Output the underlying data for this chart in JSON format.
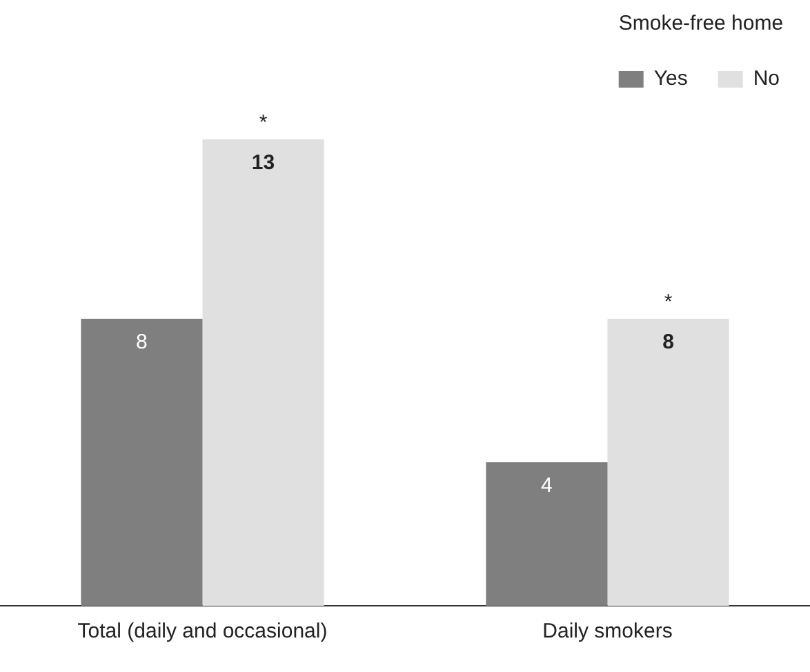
{
  "chart_data": {
    "type": "bar",
    "categories": [
      "Total (daily and occasional)",
      "Daily smokers"
    ],
    "legend_title": "Smoke-free home",
    "legend": "top right",
    "data_labels": true,
    "grid": false,
    "series": [
      {
        "name": "Yes",
        "color": "#7f7f7f",
        "values": [
          8,
          4
        ]
      },
      {
        "name": "No",
        "color": "#e0e0e0",
        "values": [
          13,
          8
        ]
      }
    ],
    "annotations": [
      {
        "text": "*",
        "x": "Total (daily and occasional)",
        "y": 13
      },
      {
        "text": "*",
        "x": "Daily smokers",
        "y": 8
      }
    ]
  }
}
